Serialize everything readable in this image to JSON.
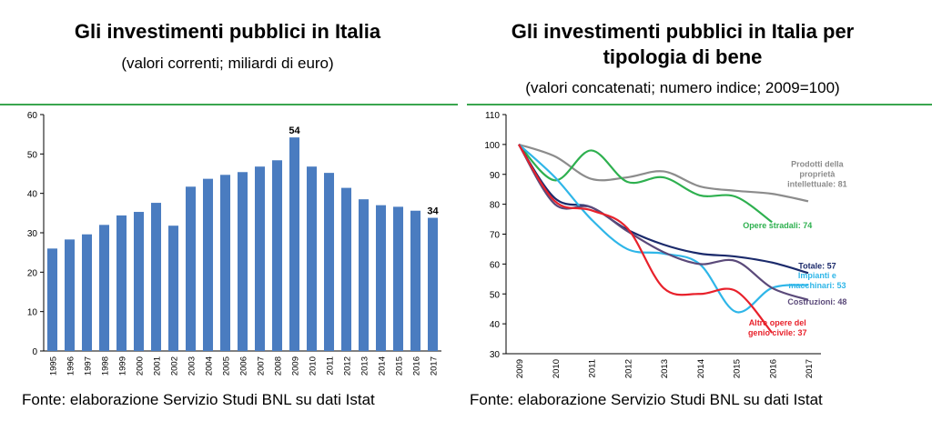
{
  "left": {
    "title": "Gli investimenti pubblici in Italia",
    "subtitle": "(valori correnti; miliardi di euro)",
    "source": "Fonte: elaborazione Servizio Studi BNL su dati Istat"
  },
  "right": {
    "title_line1": "Gli investimenti pubblici in Italia per",
    "title_line2": "tipologia di bene",
    "subtitle": "(valori concatenati; numero indice; 2009=100)",
    "source": "Fonte: elaborazione Servizio Studi BNL su dati Istat"
  },
  "colors": {
    "accent_rule": "#3aa64f",
    "bar": "#4a7cc0"
  },
  "chart_data": [
    {
      "type": "bar",
      "categories": [
        "1995",
        "1996",
        "1997",
        "1998",
        "1999",
        "2000",
        "2001",
        "2002",
        "2003",
        "2004",
        "2005",
        "2006",
        "2007",
        "2008",
        "2009",
        "2010",
        "2011",
        "2012",
        "2013",
        "2014",
        "2015",
        "2016",
        "2017"
      ],
      "values": [
        26,
        28.3,
        29.6,
        32,
        34.4,
        35.3,
        37.6,
        31.8,
        41.7,
        43.7,
        44.7,
        45.4,
        46.8,
        48.4,
        54.2,
        46.8,
        45.2,
        41.4,
        38.5,
        37,
        36.6,
        35.6,
        33.8
      ],
      "data_labels": [
        {
          "category": "2009",
          "text": "54"
        },
        {
          "category": "2017",
          "text": "34"
        }
      ],
      "ylim": [
        0,
        60
      ],
      "yticks": [
        "0",
        "10",
        "20",
        "30",
        "40",
        "50",
        "60"
      ]
    },
    {
      "type": "line",
      "x": [
        "2009",
        "2010",
        "2011",
        "2012",
        "2013",
        "2014",
        "2015",
        "2016",
        "2017"
      ],
      "ylim": [
        30,
        110
      ],
      "yticks": [
        "30",
        "40",
        "50",
        "60",
        "70",
        "80",
        "90",
        "100",
        "110"
      ],
      "series": [
        {
          "name": "Prodotti della proprietà intellettuale: 81",
          "label_lines": [
            "Prodotti della",
            "proprietà",
            "intellettuale: 81"
          ],
          "color": "#8c8c8c",
          "values": [
            100,
            96,
            88.5,
            89,
            91,
            86,
            84.5,
            83.5,
            81
          ]
        },
        {
          "name": "Opere stradali: 74",
          "label_lines": [
            "Opere stradali: 74"
          ],
          "color": "#2eb04f",
          "values": [
            100,
            88,
            98,
            87.5,
            89,
            83,
            82.5,
            74,
            null
          ]
        },
        {
          "name": "Totale: 57",
          "label_lines": [
            "Totale: 57"
          ],
          "color": "#1b2a6b",
          "values": [
            100,
            82,
            79,
            71.5,
            66.5,
            63.5,
            62.5,
            60.5,
            57
          ]
        },
        {
          "name": "Impianti e macchinari: 53",
          "label_lines": [
            "Impianti e",
            "macchinari: 53"
          ],
          "color": "#2fb6e8",
          "values": [
            100,
            89,
            75,
            65,
            63.5,
            60,
            44,
            52,
            53
          ]
        },
        {
          "name": "Costruzioni: 48",
          "label_lines": [
            "Costruzioni: 48"
          ],
          "color": "#5b4a7a",
          "values": [
            100,
            80,
            79,
            71,
            64,
            60,
            61,
            52,
            48
          ]
        },
        {
          "name": "Altre opere del genio civile: 37",
          "label_lines": [
            "Altre opere del",
            "genio civile: 37"
          ],
          "color": "#e8212b",
          "values": [
            100,
            81,
            78,
            72,
            52,
            50,
            51,
            37,
            null
          ]
        }
      ]
    }
  ]
}
